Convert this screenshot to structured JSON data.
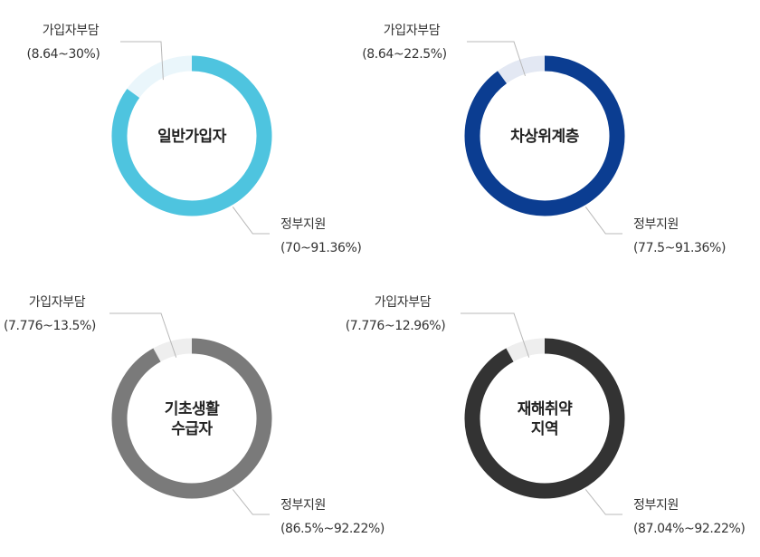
{
  "chart_data": [
    {
      "type": "pie",
      "center_label": [
        "일반가입자"
      ],
      "color": "#4ec4df",
      "subscriber_color": "#eaf6fb",
      "slices": [
        {
          "label": "가입자부담",
          "range": "(8.64~30%)",
          "value": 15
        },
        {
          "label": "정부지원",
          "range": "(70~91.36%)",
          "value": 85
        }
      ]
    },
    {
      "type": "pie",
      "center_label": [
        "차상위계층"
      ],
      "color": "#0b3d91",
      "subscriber_color": "#e3e8f3",
      "slices": [
        {
          "label": "가입자부담",
          "range": "(8.64~22.5%)",
          "value": 10
        },
        {
          "label": "정부지원",
          "range": "(77.5~91.36%)",
          "value": 90
        }
      ]
    },
    {
      "type": "pie",
      "center_label": [
        "기초생활",
        "수급자"
      ],
      "color": "#7a7a7a",
      "subscriber_color": "#eeeeee",
      "slices": [
        {
          "label": "가입자부담",
          "range": "(7.776~13.5%)",
          "value": 8
        },
        {
          "label": "정부지원",
          "range": "(86.5%~92.22%)",
          "value": 92
        }
      ]
    },
    {
      "type": "pie",
      "center_label": [
        "재해취약",
        "지역"
      ],
      "color": "#333333",
      "subscriber_color": "#eeeeee",
      "slices": [
        {
          "label": "가입자부담",
          "range": "(7.776~12.96%)",
          "value": 8
        },
        {
          "label": "정부지원",
          "range": "(87.04%~92.22%)",
          "value": 92
        }
      ]
    }
  ]
}
